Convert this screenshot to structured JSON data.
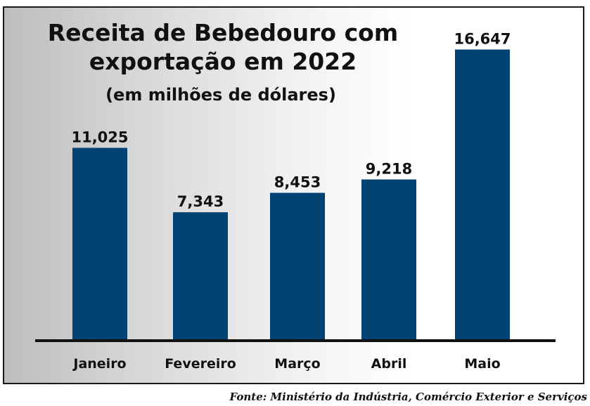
{
  "chart_data": {
    "type": "bar",
    "title": "Receita de Bebedouro com exportação em 2022",
    "title_lines": [
      "Receita de Bebedouro com",
      "exportação em 2022"
    ],
    "subtitle": "(em milhões de dólares)",
    "categories": [
      "Janeiro",
      "Fevereiro",
      "Março",
      "Abril",
      "Maio"
    ],
    "values": [
      11.025,
      7.343,
      8.453,
      9.218,
      16.647
    ],
    "value_labels": [
      "11,025",
      "7,343",
      "8,453",
      "9,218",
      "16,647"
    ],
    "xlabel": "",
    "ylabel": "",
    "ylim": [
      0,
      17.5
    ],
    "grid": false,
    "bar_color": "#004272",
    "axis_color": "#111111"
  },
  "source": "Fonte: Ministério da Indústria, Comércio Exterior e Serviços"
}
